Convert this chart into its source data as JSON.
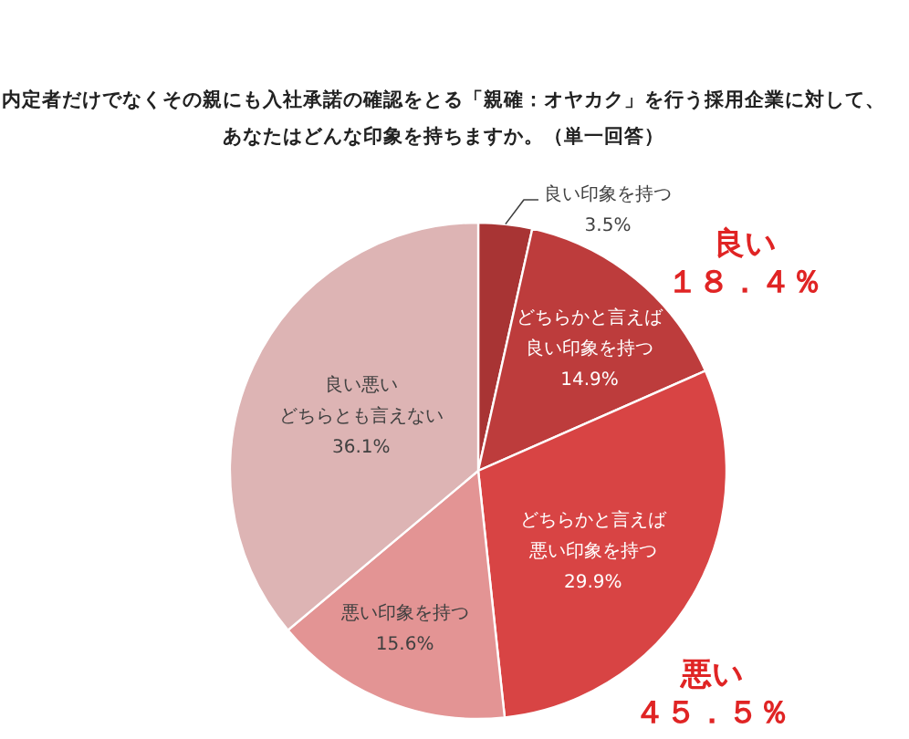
{
  "chart_data": {
    "type": "pie",
    "title": "内定者だけでなくその親にも入社承諾の確認をとる「親確：オヤカク」を行う採用企業に対して、あなたはどんな印象を持ちますか。（単一回答）",
    "categories": [
      "良い印象を持つ",
      "どちらかと言えば良い印象を持つ",
      "どちらかと言えば悪い印象を持つ",
      "悪い印象を持つ",
      "良い悪いどちらとも言えない"
    ],
    "values": [
      3.5,
      14.9,
      29.9,
      15.6,
      36.1
    ],
    "colors": [
      "#a83434",
      "#bd3c3c",
      "#d84444",
      "#e39494",
      "#ddb4b4"
    ],
    "value_labels": [
      "3.5%",
      "14.9%",
      "29.9%",
      "15.6%",
      "36.1%"
    ],
    "annotations": [
      "良い１８．４％",
      "悪い４５．５％"
    ]
  }
}
